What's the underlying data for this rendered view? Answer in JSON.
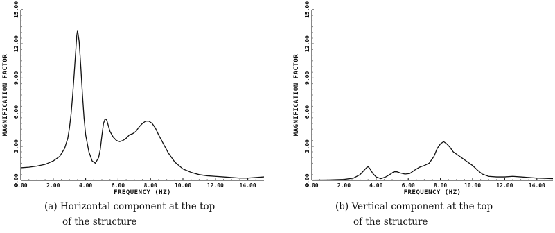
{
  "chart_data": [
    {
      "type": "line",
      "xlabel": "FREQUENCY (HZ)",
      "ylabel": "MAGNIFICATION FACTOR",
      "xlim": [
        0,
        15
      ],
      "ylim": [
        0,
        15
      ],
      "x_ticks": [
        "0.00",
        "2.00",
        "4.00",
        "6.00",
        "8.00",
        "10.00",
        "12.00",
        "14.00"
      ],
      "y_ticks": [
        "0.00",
        "3.00",
        "6.00",
        "9.00",
        "12.00",
        "15.00"
      ],
      "caption": [
        "(a)  Horizontal component at the top",
        "of the structure"
      ],
      "series": [
        {
          "x": [
            0.0,
            0.5,
            1.0,
            1.5,
            2.0,
            2.4,
            2.7,
            2.9,
            3.0,
            3.1,
            3.2,
            3.3,
            3.4,
            3.45,
            3.5,
            3.6,
            3.7,
            3.8,
            3.9,
            4.0,
            4.2,
            4.4,
            4.6,
            4.8,
            4.9,
            5.0,
            5.1,
            5.2,
            5.3,
            5.4,
            5.5,
            5.7,
            5.9,
            6.1,
            6.3,
            6.5,
            6.7,
            6.9,
            7.1,
            7.3,
            7.5,
            7.7,
            7.9,
            8.1,
            8.3,
            8.5,
            8.8,
            9.1,
            9.5,
            10.0,
            10.5,
            11.0,
            11.5,
            12.0,
            12.5,
            13.0,
            13.5,
            14.0,
            14.5,
            15.0
          ],
          "y": [
            1.1,
            1.15,
            1.25,
            1.4,
            1.7,
            2.1,
            2.8,
            3.7,
            4.6,
            5.8,
            7.5,
            9.5,
            11.6,
            12.7,
            13.2,
            12.2,
            10.0,
            7.6,
            5.5,
            4.0,
            2.5,
            1.7,
            1.5,
            2.0,
            2.7,
            3.9,
            5.0,
            5.4,
            5.3,
            4.8,
            4.3,
            3.8,
            3.5,
            3.4,
            3.5,
            3.7,
            4.0,
            4.1,
            4.3,
            4.7,
            5.0,
            5.2,
            5.2,
            5.0,
            4.6,
            4.0,
            3.2,
            2.4,
            1.6,
            1.0,
            0.7,
            0.5,
            0.4,
            0.35,
            0.3,
            0.25,
            0.2,
            0.2,
            0.25,
            0.3
          ]
        }
      ]
    },
    {
      "type": "line",
      "xlabel": "FREQUENCY (HZ)",
      "ylabel": "MAGNIFICATION FACTOR",
      "xlim": [
        0,
        15
      ],
      "ylim": [
        0,
        15
      ],
      "x_ticks": [
        "0.00",
        "2.00",
        "4.00",
        "6.00",
        "8.00",
        "10.00",
        "12.00",
        "14.00"
      ],
      "y_ticks": [
        "0.00",
        "3.00",
        "6.00",
        "9.00",
        "12.00",
        "15.00"
      ],
      "caption": [
        "(b)  Vertical component at the top",
        "of the structure"
      ],
      "series": [
        {
          "x": [
            0.0,
            1.0,
            2.0,
            2.6,
            3.0,
            3.2,
            3.4,
            3.5,
            3.6,
            3.8,
            4.0,
            4.3,
            4.6,
            4.9,
            5.1,
            5.3,
            5.5,
            5.8,
            6.1,
            6.4,
            6.7,
            7.0,
            7.3,
            7.6,
            7.8,
            8.0,
            8.2,
            8.4,
            8.6,
            8.8,
            9.0,
            9.3,
            9.6,
            10.0,
            10.3,
            10.6,
            11.0,
            11.5,
            12.0,
            12.5,
            13.0,
            13.5,
            14.0,
            14.5,
            15.0
          ],
          "y": [
            0.02,
            0.04,
            0.08,
            0.2,
            0.5,
            0.8,
            1.1,
            1.2,
            1.05,
            0.6,
            0.3,
            0.15,
            0.3,
            0.55,
            0.75,
            0.75,
            0.65,
            0.55,
            0.6,
            0.9,
            1.15,
            1.3,
            1.5,
            2.1,
            2.8,
            3.2,
            3.4,
            3.2,
            2.9,
            2.5,
            2.3,
            2.0,
            1.7,
            1.3,
            0.9,
            0.55,
            0.35,
            0.3,
            0.3,
            0.35,
            0.3,
            0.25,
            0.2,
            0.18,
            0.15
          ]
        }
      ]
    }
  ]
}
